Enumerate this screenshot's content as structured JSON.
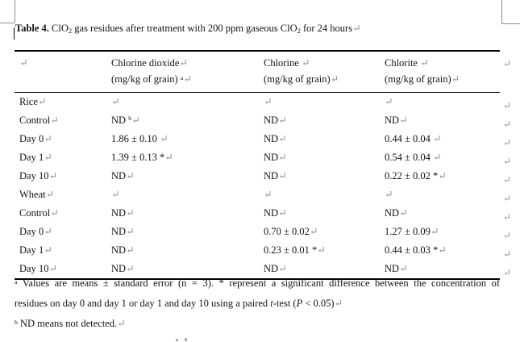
{
  "title": {
    "prefix": "Table 4.",
    "seg1": " ClO",
    "sub1": "2",
    "seg2": " gas residues after treatment with 200 ppm gaseous ClO",
    "sub2": "2",
    "seg3": " for 24 hours",
    "mark": "↵"
  },
  "table": {
    "row_end_mark": "↵",
    "header": {
      "col1_mark": "↵",
      "columns": [
        {
          "name": "Chlorine dioxide",
          "name_mark": "↵",
          "unit": "(mg/kg of grain) ",
          "unit_sup": "a",
          "unit_mark": "↵"
        },
        {
          "name": "Chlorine ",
          "name_mark": "↵",
          "unit": "(mg/kg of grain)",
          "unit_sup": "",
          "unit_mark": "↵"
        },
        {
          "name": "Chlorite ",
          "name_mark": "↵",
          "unit": "(mg/kg of grain)",
          "unit_sup": "",
          "unit_mark": "↵"
        }
      ]
    },
    "rows": [
      {
        "label": "Rice",
        "label_mark": "↵",
        "cells": [
          {
            "text": "",
            "sup": "",
            "mark": "↵"
          },
          {
            "text": "",
            "sup": "",
            "mark": "↵"
          },
          {
            "text": "",
            "sup": "",
            "mark": "↵"
          }
        ]
      },
      {
        "label": "Control",
        "label_mark": "↵",
        "cells": [
          {
            "text": "ND ",
            "sup": "b",
            "mark": "↵"
          },
          {
            "text": "ND",
            "sup": "",
            "mark": "↵"
          },
          {
            "text": "ND",
            "sup": "",
            "mark": "↵"
          }
        ]
      },
      {
        "label": "Day 0",
        "label_mark": "↵",
        "cells": [
          {
            "text": "1.86 ± 0.10 ",
            "sup": "",
            "mark": "↵"
          },
          {
            "text": "ND",
            "sup": "",
            "mark": "↵"
          },
          {
            "text": "0.44 ± 0.04 ",
            "sup": "",
            "mark": "↵"
          }
        ]
      },
      {
        "label": "Day 1",
        "label_mark": "↵",
        "cells": [
          {
            "text": "1.39 ± 0.13 *",
            "sup": "",
            "mark": "↵"
          },
          {
            "text": "ND",
            "sup": "",
            "mark": "↵"
          },
          {
            "text": "0.54 ± 0.04 ",
            "sup": "",
            "mark": "↵"
          }
        ]
      },
      {
        "label": "Day 10",
        "label_mark": "↵",
        "cells": [
          {
            "text": "ND",
            "sup": "",
            "mark": "↵"
          },
          {
            "text": "ND",
            "sup": "",
            "mark": "↵"
          },
          {
            "text": "0.22 ± 0.02 *",
            "sup": "",
            "mark": "↵"
          }
        ]
      },
      {
        "label": "Wheat",
        "label_mark": "↵",
        "cells": [
          {
            "text": "",
            "sup": "",
            "mark": "↵"
          },
          {
            "text": "",
            "sup": "",
            "mark": "↵"
          },
          {
            "text": "",
            "sup": "",
            "mark": "↵"
          }
        ]
      },
      {
        "label": "Control",
        "label_mark": "↵",
        "cells": [
          {
            "text": "ND",
            "sup": "",
            "mark": "↵"
          },
          {
            "text": "ND",
            "sup": "",
            "mark": "↵"
          },
          {
            "text": "ND",
            "sup": "",
            "mark": "↵"
          }
        ]
      },
      {
        "label": "Day 0",
        "label_mark": "↵",
        "cells": [
          {
            "text": "ND",
            "sup": "",
            "mark": "↵"
          },
          {
            "text": "0.70 ± 0.02",
            "sup": "",
            "mark": "↵"
          },
          {
            "text": "1.27 ± 0.09",
            "sup": "",
            "mark": "↵"
          }
        ]
      },
      {
        "label": "Day 1",
        "label_mark": "↵",
        "cells": [
          {
            "text": "ND",
            "sup": "",
            "mark": "↵"
          },
          {
            "text": "0.23 ± 0.01 *",
            "sup": "",
            "mark": "↵"
          },
          {
            "text": "0.44 ± 0.03 *",
            "sup": "",
            "mark": "↵"
          }
        ]
      },
      {
        "label": "Day 10",
        "label_mark": "↵",
        "cells": [
          {
            "text": "ND",
            "sup": "",
            "mark": "↵"
          },
          {
            "text": "ND",
            "sup": "",
            "mark": "↵"
          },
          {
            "text": "ND",
            "sup": "",
            "mark": "↵"
          }
        ]
      }
    ]
  },
  "footnotes": {
    "a_sup": "a",
    "a_line1": " Values are means ± standard error (n = 3). * represent a significant difference between the concentration of",
    "a_line2_pre": "residues on day 0 and day 1 or day 1 and day 10 using a paired ",
    "a_line2_it1": "t",
    "a_line2_mid": "-test (",
    "a_line2_it2": "P",
    "a_line2_post": " < 0.05)",
    "a_line2_mark": "↵",
    "b_sup": "b",
    "b_text": " ND means not detected.",
    "b_mark": "↵"
  }
}
